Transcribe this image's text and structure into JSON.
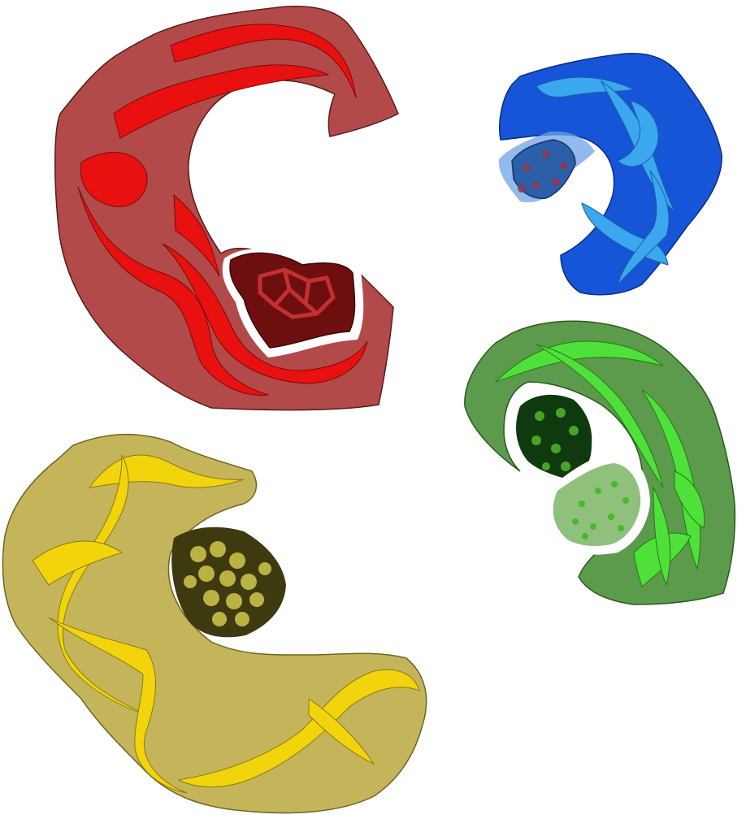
{
  "figure": {
    "background": "#ffffff",
    "panels": [
      {
        "id": "red",
        "surface_fill": "#b24a4a",
        "surface_stroke": "#5a1a1a",
        "ribbon_fill": "#e8110f",
        "ribbon_stroke": "#7a0a0a",
        "ligand_fill": "#6e0f0f",
        "ligand_stroke": "#3a0505",
        "ligand_bonds": "#c23030"
      },
      {
        "id": "blue",
        "surface_fill": "#1654d8",
        "surface_stroke": "#0a2e8a",
        "ribbon_fill": "#3aa7ee",
        "ribbon_stroke": "#1a5fa0",
        "ligand_fill": "#2b5fa8",
        "ligand_stroke": "#16356a",
        "ligand_glow": "#6fa3e6",
        "ligand_atoms": "#8a3a5a"
      },
      {
        "id": "green",
        "surface_fill": "#5c9a4c",
        "surface_stroke": "#2a5a20",
        "ribbon_fill": "#4fe03a",
        "ribbon_stroke": "#237a18",
        "ligand_fill": "#0f3a0f",
        "ligand_atoms": "#4fb02a",
        "ligand2_fill": "#8fc07c",
        "ligand2_atoms": "#4ab82a"
      },
      {
        "id": "yellow",
        "surface_fill": "#c5b55a",
        "surface_stroke": "#6f6424",
        "ribbon_fill": "#f2d40c",
        "ribbon_stroke": "#8a7a10",
        "ligand_fill": "#3d3a10",
        "ligand_atoms": "#c9c04a"
      }
    ]
  }
}
